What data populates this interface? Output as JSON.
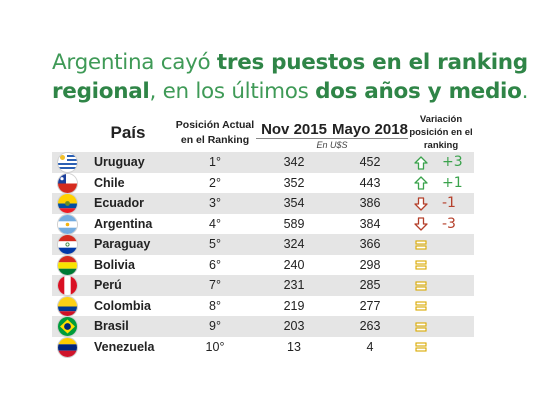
{
  "headline": {
    "part1": "Argentina cayó ",
    "part2": "tres puestos en el ranking",
    "part3": "regional",
    "part4": ", en los últimos ",
    "part5": "dos años y medio",
    "part6": "."
  },
  "columns": {
    "country": "País",
    "position": "Posición Actual en el Ranking",
    "nov2015": "Nov 2015",
    "may2018": "Mayo 2018",
    "unit": "En U$S",
    "variation": "Variación posición en el ranking"
  },
  "colors": {
    "up": "#3aa24c",
    "down": "#b5402b",
    "neutral": "#e6b800",
    "headline": "#3f9a57"
  },
  "chart_data": {
    "type": "table",
    "columns": [
      "País",
      "Posición Actual en el Ranking",
      "Nov 2015",
      "Mayo 2018",
      "Variación posición en el ranking"
    ],
    "rows": [
      {
        "country": "Uruguay",
        "flag": "uruguay-flag-icon",
        "position": "1°",
        "nov2015": "342",
        "may2018": "452",
        "trend": "up",
        "variation": "+3"
      },
      {
        "country": "Chile",
        "flag": "chile-flag-icon",
        "position": "2°",
        "nov2015": "352",
        "may2018": "443",
        "trend": "up",
        "variation": "+1"
      },
      {
        "country": "Ecuador",
        "flag": "ecuador-flag-icon",
        "position": "3°",
        "nov2015": "354",
        "may2018": "386",
        "trend": "down",
        "variation": "-1"
      },
      {
        "country": "Argentina",
        "flag": "argentina-flag-icon",
        "position": "4°",
        "nov2015": "589",
        "may2018": "384",
        "trend": "down",
        "variation": "-3"
      },
      {
        "country": "Paraguay",
        "flag": "paraguay-flag-icon",
        "position": "5°",
        "nov2015": "324",
        "may2018": "366",
        "trend": "neutral",
        "variation": ""
      },
      {
        "country": "Bolivia",
        "flag": "bolivia-flag-icon",
        "position": "6°",
        "nov2015": "240",
        "may2018": "298",
        "trend": "neutral",
        "variation": ""
      },
      {
        "country": "Perú",
        "flag": "peru-flag-icon",
        "position": "7°",
        "nov2015": "231",
        "may2018": "285",
        "trend": "neutral",
        "variation": ""
      },
      {
        "country": "Colombia",
        "flag": "colombia-flag-icon",
        "position": "8°",
        "nov2015": "219",
        "may2018": "277",
        "trend": "neutral",
        "variation": ""
      },
      {
        "country": "Brasil",
        "flag": "brasil-flag-icon",
        "position": "9°",
        "nov2015": "203",
        "may2018": "263",
        "trend": "neutral",
        "variation": ""
      },
      {
        "country": "Venezuela",
        "flag": "venezuela-flag-icon",
        "position": "10°",
        "nov2015": "13",
        "may2018": "4",
        "trend": "neutral",
        "variation": ""
      }
    ]
  }
}
